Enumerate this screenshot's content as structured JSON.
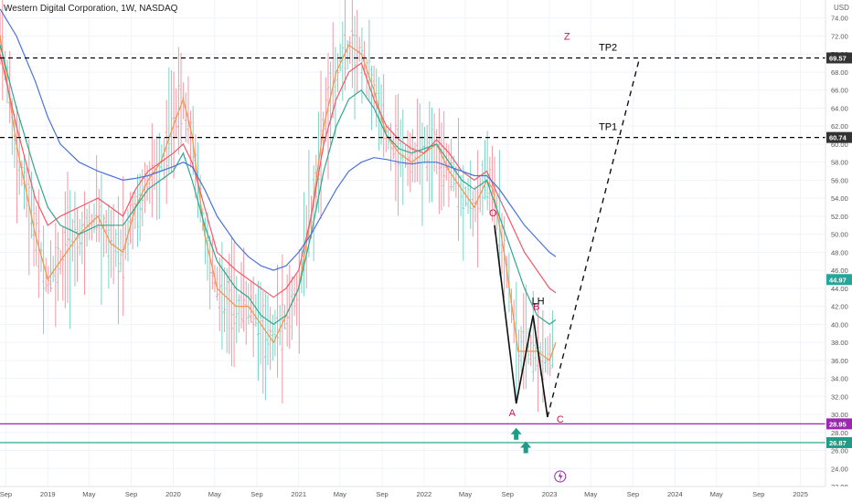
{
  "chart_data": {
    "type": "line",
    "title": "Western Digital Corporation, 1W, NASDAQ",
    "currency": "USD",
    "ylim": [
      22,
      76
    ],
    "y_ticks": [
      22,
      24,
      26,
      28,
      30,
      32,
      34,
      36,
      38,
      40,
      42,
      44,
      46,
      48,
      50,
      52,
      54,
      56,
      58,
      60,
      62,
      64,
      66,
      68,
      70,
      72,
      74
    ],
    "x_range": [
      "2018-08-15",
      "2025-03-15"
    ],
    "x_ticks": [
      {
        "label": "Sep",
        "date": "2018-09-01"
      },
      {
        "label": "2019",
        "date": "2019-01-01"
      },
      {
        "label": "May",
        "date": "2019-05-01"
      },
      {
        "label": "Sep",
        "date": "2019-09-01"
      },
      {
        "label": "2020",
        "date": "2020-01-01"
      },
      {
        "label": "May",
        "date": "2020-05-01"
      },
      {
        "label": "Sep",
        "date": "2020-09-01"
      },
      {
        "label": "2021",
        "date": "2021-01-01"
      },
      {
        "label": "May",
        "date": "2021-05-01"
      },
      {
        "label": "Sep",
        "date": "2021-09-01"
      },
      {
        "label": "2022",
        "date": "2022-01-01"
      },
      {
        "label": "May",
        "date": "2022-05-01"
      },
      {
        "label": "Sep",
        "date": "2022-09-01"
      },
      {
        "label": "2023",
        "date": "2023-01-01"
      },
      {
        "label": "May",
        "date": "2023-05-01"
      },
      {
        "label": "Sep",
        "date": "2023-09-01"
      },
      {
        "label": "2024",
        "date": "2024-01-01"
      },
      {
        "label": "May",
        "date": "2024-05-01"
      },
      {
        "label": "Sep",
        "date": "2024-09-01"
      },
      {
        "label": "2025",
        "date": "2025-01-01"
      }
    ],
    "horizontal_levels": [
      {
        "value": 69.57,
        "label": "TP2",
        "style": "dashed",
        "color": "#000000",
        "badge": "69.57",
        "badge_color": "#333333"
      },
      {
        "value": 60.74,
        "label": "TP1",
        "style": "dashed",
        "color": "#000000",
        "badge": "60.74",
        "badge_color": "#333333"
      },
      {
        "value": 28.95,
        "style": "solid",
        "color": "#9c27b0",
        "badge": "28.95",
        "badge_color": "#9c27b0"
      },
      {
        "value": 26.87,
        "style": "solid",
        "color": "#1e9c86",
        "badge": "26.87",
        "badge_color": "#1e9c86"
      }
    ],
    "last_price": {
      "value": 44.97,
      "label": "44.97",
      "color": "#26a69a"
    },
    "wave_points": [
      {
        "label": "O",
        "date": "2022-07-25",
        "value": 51.0
      },
      {
        "label": "A",
        "date": "2022-09-26",
        "value": 31.2
      },
      {
        "label": "B",
        "date": "2022-11-14",
        "value": 41.0
      },
      {
        "label": "C",
        "date": "2022-12-26",
        "value": 29.7
      }
    ],
    "annotations": [
      {
        "text": "LH",
        "date": "2022-11-10",
        "value": 42.2,
        "color": "#000000"
      },
      {
        "text": "Z",
        "date": "2023-02-12",
        "value": 71.6,
        "color": "#c2185b"
      }
    ],
    "projection": {
      "from": {
        "date": "2022-12-26",
        "value": 29.7
      },
      "to": {
        "date": "2023-09-20",
        "value": 69.57
      },
      "style": "dashed"
    },
    "arrows": [
      {
        "date": "2022-09-26",
        "value": 27.8,
        "color": "#1e9c86"
      },
      {
        "date": "2022-10-24",
        "value": 26.3,
        "color": "#1e9c86"
      }
    ],
    "moving_averages": [
      {
        "color": "#f0964a",
        "values": [
          [
            2018.62,
            72
          ],
          [
            2018.75,
            60
          ],
          [
            2018.9,
            50
          ],
          [
            2019.0,
            45
          ],
          [
            2019.1,
            47
          ],
          [
            2019.25,
            50
          ],
          [
            2019.4,
            52
          ],
          [
            2019.5,
            49
          ],
          [
            2019.6,
            48
          ],
          [
            2019.7,
            53
          ],
          [
            2019.8,
            56
          ],
          [
            2019.9,
            58
          ],
          [
            2020.0,
            62
          ],
          [
            2020.08,
            65
          ],
          [
            2020.15,
            61
          ],
          [
            2020.25,
            50
          ],
          [
            2020.35,
            44
          ],
          [
            2020.5,
            42
          ],
          [
            2020.6,
            42
          ],
          [
            2020.7,
            40
          ],
          [
            2020.8,
            38
          ],
          [
            2020.9,
            41
          ],
          [
            2021.0,
            44
          ],
          [
            2021.1,
            52
          ],
          [
            2021.2,
            62
          ],
          [
            2021.3,
            68
          ],
          [
            2021.4,
            71
          ],
          [
            2021.5,
            70
          ],
          [
            2021.6,
            66
          ],
          [
            2021.7,
            61
          ],
          [
            2021.8,
            59
          ],
          [
            2021.9,
            58
          ],
          [
            2022.0,
            59
          ],
          [
            2022.1,
            60
          ],
          [
            2022.2,
            57
          ],
          [
            2022.3,
            55
          ],
          [
            2022.4,
            53
          ],
          [
            2022.5,
            56
          ],
          [
            2022.55,
            55
          ],
          [
            2022.65,
            47
          ],
          [
            2022.75,
            37
          ],
          [
            2022.85,
            37
          ],
          [
            2022.9,
            37
          ],
          [
            2023.0,
            36
          ],
          [
            2023.05,
            38
          ]
        ]
      },
      {
        "color": "#f25a6a",
        "values": [
          [
            2018.62,
            70
          ],
          [
            2018.75,
            62
          ],
          [
            2018.9,
            54
          ],
          [
            2019.0,
            51
          ],
          [
            2019.1,
            52
          ],
          [
            2019.25,
            53
          ],
          [
            2019.4,
            54
          ],
          [
            2019.5,
            53
          ],
          [
            2019.6,
            52
          ],
          [
            2019.7,
            55
          ],
          [
            2019.8,
            57
          ],
          [
            2019.9,
            58
          ],
          [
            2020.0,
            59
          ],
          [
            2020.08,
            60
          ],
          [
            2020.15,
            58
          ],
          [
            2020.25,
            53
          ],
          [
            2020.35,
            48
          ],
          [
            2020.5,
            46
          ],
          [
            2020.6,
            45
          ],
          [
            2020.7,
            44
          ],
          [
            2020.8,
            43
          ],
          [
            2020.9,
            44
          ],
          [
            2021.0,
            46
          ],
          [
            2021.1,
            52
          ],
          [
            2021.2,
            60
          ],
          [
            2021.3,
            65
          ],
          [
            2021.4,
            68
          ],
          [
            2021.5,
            69
          ],
          [
            2021.6,
            65
          ],
          [
            2021.7,
            62
          ],
          [
            2021.8,
            60.5
          ],
          [
            2021.9,
            59.5
          ],
          [
            2022.0,
            59
          ],
          [
            2022.1,
            60.5
          ],
          [
            2022.2,
            59
          ],
          [
            2022.3,
            57
          ],
          [
            2022.4,
            56
          ],
          [
            2022.5,
            57
          ],
          [
            2022.6,
            54
          ],
          [
            2022.7,
            51
          ],
          [
            2022.8,
            48
          ],
          [
            2022.9,
            46
          ],
          [
            2023.0,
            44
          ],
          [
            2023.05,
            43.5
          ]
        ]
      },
      {
        "color": "#2fa88e",
        "values": [
          [
            2018.62,
            71
          ],
          [
            2018.75,
            64
          ],
          [
            2018.9,
            57
          ],
          [
            2019.0,
            53
          ],
          [
            2019.1,
            51
          ],
          [
            2019.25,
            50
          ],
          [
            2019.4,
            51
          ],
          [
            2019.5,
            51
          ],
          [
            2019.6,
            51
          ],
          [
            2019.7,
            53
          ],
          [
            2019.8,
            55
          ],
          [
            2019.9,
            56
          ],
          [
            2020.0,
            57
          ],
          [
            2020.08,
            59
          ],
          [
            2020.15,
            56
          ],
          [
            2020.25,
            51
          ],
          [
            2020.35,
            47
          ],
          [
            2020.5,
            44
          ],
          [
            2020.6,
            43
          ],
          [
            2020.7,
            41
          ],
          [
            2020.8,
            40
          ],
          [
            2020.9,
            41
          ],
          [
            2021.0,
            44
          ],
          [
            2021.1,
            50
          ],
          [
            2021.2,
            57
          ],
          [
            2021.3,
            62
          ],
          [
            2021.4,
            65
          ],
          [
            2021.5,
            66
          ],
          [
            2021.6,
            64
          ],
          [
            2021.7,
            61
          ],
          [
            2021.8,
            59.5
          ],
          [
            2021.9,
            59
          ],
          [
            2022.0,
            59.5
          ],
          [
            2022.1,
            60
          ],
          [
            2022.2,
            58
          ],
          [
            2022.3,
            56
          ],
          [
            2022.4,
            55
          ],
          [
            2022.5,
            56
          ],
          [
            2022.6,
            52
          ],
          [
            2022.7,
            48
          ],
          [
            2022.8,
            44
          ],
          [
            2022.9,
            41
          ],
          [
            2023.0,
            40
          ],
          [
            2023.05,
            40.5
          ]
        ]
      },
      {
        "color": "#4a73d9",
        "values": [
          [
            2018.62,
            75
          ],
          [
            2018.75,
            72
          ],
          [
            2018.9,
            67
          ],
          [
            2019.0,
            63
          ],
          [
            2019.1,
            60
          ],
          [
            2019.25,
            58
          ],
          [
            2019.4,
            57
          ],
          [
            2019.5,
            56.5
          ],
          [
            2019.6,
            56
          ],
          [
            2019.7,
            56.2
          ],
          [
            2019.8,
            56.5
          ],
          [
            2019.9,
            57
          ],
          [
            2020.0,
            57.5
          ],
          [
            2020.08,
            58
          ],
          [
            2020.15,
            57.5
          ],
          [
            2020.25,
            55
          ],
          [
            2020.35,
            52
          ],
          [
            2020.5,
            49
          ],
          [
            2020.6,
            47.5
          ],
          [
            2020.7,
            46.5
          ],
          [
            2020.8,
            46
          ],
          [
            2020.9,
            46.5
          ],
          [
            2021.0,
            48
          ],
          [
            2021.1,
            50
          ],
          [
            2021.2,
            52.5
          ],
          [
            2021.3,
            55
          ],
          [
            2021.4,
            57
          ],
          [
            2021.5,
            58
          ],
          [
            2021.6,
            58.5
          ],
          [
            2021.7,
            58.3
          ],
          [
            2021.8,
            58
          ],
          [
            2021.9,
            57.8
          ],
          [
            2022.0,
            58
          ],
          [
            2022.1,
            58
          ],
          [
            2022.2,
            57.5
          ],
          [
            2022.3,
            57
          ],
          [
            2022.4,
            56.5
          ],
          [
            2022.5,
            56.5
          ],
          [
            2022.6,
            55
          ],
          [
            2022.7,
            53
          ],
          [
            2022.8,
            51
          ],
          [
            2022.9,
            49.5
          ],
          [
            2023.0,
            48
          ],
          [
            2023.05,
            47.5
          ]
        ]
      }
    ]
  }
}
